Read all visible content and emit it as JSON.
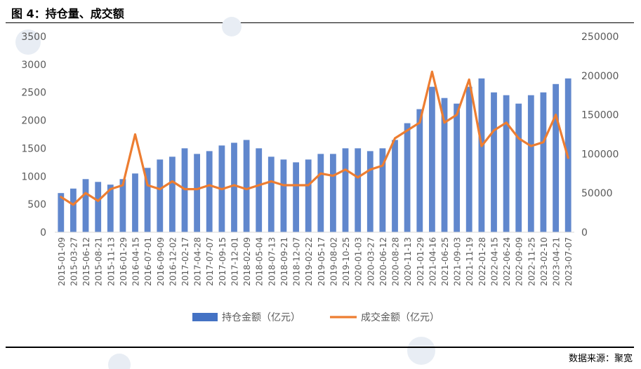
{
  "figure": {
    "title": "图 4：持仓量、成交额",
    "source": "数据来源：聚宽"
  },
  "chart_data": {
    "type": "bar+line",
    "x_tick_labels": [
      "2015-01-09",
      "2015-03-27",
      "2015-06-12",
      "2015-08-21",
      "2015-11-13",
      "2016-01-29",
      "2016-04-15",
      "2016-07-01",
      "2016-09-09",
      "2016-12-02",
      "2017-02-17",
      "2017-04-28",
      "2017-07-07",
      "2017-09-15",
      "2017-12-01",
      "2018-02-09",
      "2018-05-04",
      "2018-07-13",
      "2018-09-21",
      "2018-12-07",
      "2019-02-22",
      "2019-05-17",
      "2019-08-02",
      "2019-10-25",
      "2020-01-03",
      "2020-03-27",
      "2020-06-12",
      "2020-08-28",
      "2020-11-13",
      "2021-01-29",
      "2021-04-16",
      "2021-06-25",
      "2021-09-03",
      "2021-11-19",
      "2022-01-28",
      "2022-04-15",
      "2022-06-24",
      "2022-09-09",
      "2022-11-25",
      "2023-02-10",
      "2023-04-21",
      "2023-07-07"
    ],
    "y_left": {
      "ticks": [
        "0",
        "500",
        "1000",
        "1500",
        "2000",
        "2500",
        "3000",
        "3500"
      ],
      "min": 0,
      "max": 3500
    },
    "y_right": {
      "ticks": [
        "0",
        "50000",
        "100000",
        "150000",
        "200000",
        "250000"
      ],
      "min": 0,
      "max": 250000
    },
    "colors": {
      "bars": "#4472c4",
      "line": "#ed7d31"
    },
    "legend_position": "bottom",
    "series": [
      {
        "name": "持仓金额（亿元）",
        "type": "bar",
        "axis": "left",
        "x": [
          "2015-01-09",
          "2015-03-27",
          "2015-06-12",
          "2015-08-21",
          "2015-11-13",
          "2016-01-29",
          "2016-04-15",
          "2016-07-01",
          "2016-09-09",
          "2016-12-02",
          "2017-02-17",
          "2017-04-28",
          "2017-07-07",
          "2017-09-15",
          "2017-12-01",
          "2018-02-09",
          "2018-05-04",
          "2018-07-13",
          "2018-09-21",
          "2018-12-07",
          "2019-02-22",
          "2019-05-17",
          "2019-08-02",
          "2019-10-25",
          "2020-01-03",
          "2020-03-27",
          "2020-06-12",
          "2020-08-28",
          "2020-11-13",
          "2021-01-29",
          "2021-04-16",
          "2021-06-25",
          "2021-09-03",
          "2021-11-19",
          "2022-01-28",
          "2022-04-15",
          "2022-06-24",
          "2022-09-09",
          "2022-11-25",
          "2023-02-10",
          "2023-04-21",
          "2023-07-07"
        ],
        "values": [
          700,
          780,
          950,
          900,
          850,
          950,
          1050,
          1150,
          1300,
          1350,
          1500,
          1400,
          1450,
          1550,
          1600,
          1650,
          1500,
          1350,
          1300,
          1250,
          1300,
          1400,
          1400,
          1500,
          1500,
          1450,
          1500,
          1650,
          1950,
          2200,
          2600,
          2400,
          2300,
          2600,
          2750,
          2500,
          2450,
          2300,
          2450,
          2500,
          2650,
          2750
        ]
      },
      {
        "name": "成交金额（亿元）",
        "type": "line",
        "axis": "right",
        "x": [
          "2015-01-09",
          "2015-03-27",
          "2015-06-12",
          "2015-08-21",
          "2015-11-13",
          "2016-01-29",
          "2016-04-15",
          "2016-07-01",
          "2016-09-09",
          "2016-12-02",
          "2017-02-17",
          "2017-04-28",
          "2017-07-07",
          "2017-09-15",
          "2017-12-01",
          "2018-02-09",
          "2018-05-04",
          "2018-07-13",
          "2018-09-21",
          "2018-12-07",
          "2019-02-22",
          "2019-05-17",
          "2019-08-02",
          "2019-10-25",
          "2020-01-03",
          "2020-03-27",
          "2020-06-12",
          "2020-08-28",
          "2020-11-13",
          "2021-01-29",
          "2021-04-16",
          "2021-06-25",
          "2021-09-03",
          "2021-11-19",
          "2022-01-28",
          "2022-04-15",
          "2022-06-24",
          "2022-09-09",
          "2022-11-25",
          "2023-02-10",
          "2023-04-21",
          "2023-07-07"
        ],
        "values": [
          45000,
          35000,
          50000,
          40000,
          55000,
          60000,
          125000,
          60000,
          55000,
          65000,
          55000,
          55000,
          60000,
          55000,
          60000,
          55000,
          60000,
          65000,
          60000,
          60000,
          60000,
          75000,
          72000,
          80000,
          70000,
          80000,
          85000,
          120000,
          130000,
          140000,
          205000,
          140000,
          150000,
          195000,
          110000,
          130000,
          140000,
          120000,
          110000,
          115000,
          150000,
          95000
        ]
      }
    ]
  }
}
